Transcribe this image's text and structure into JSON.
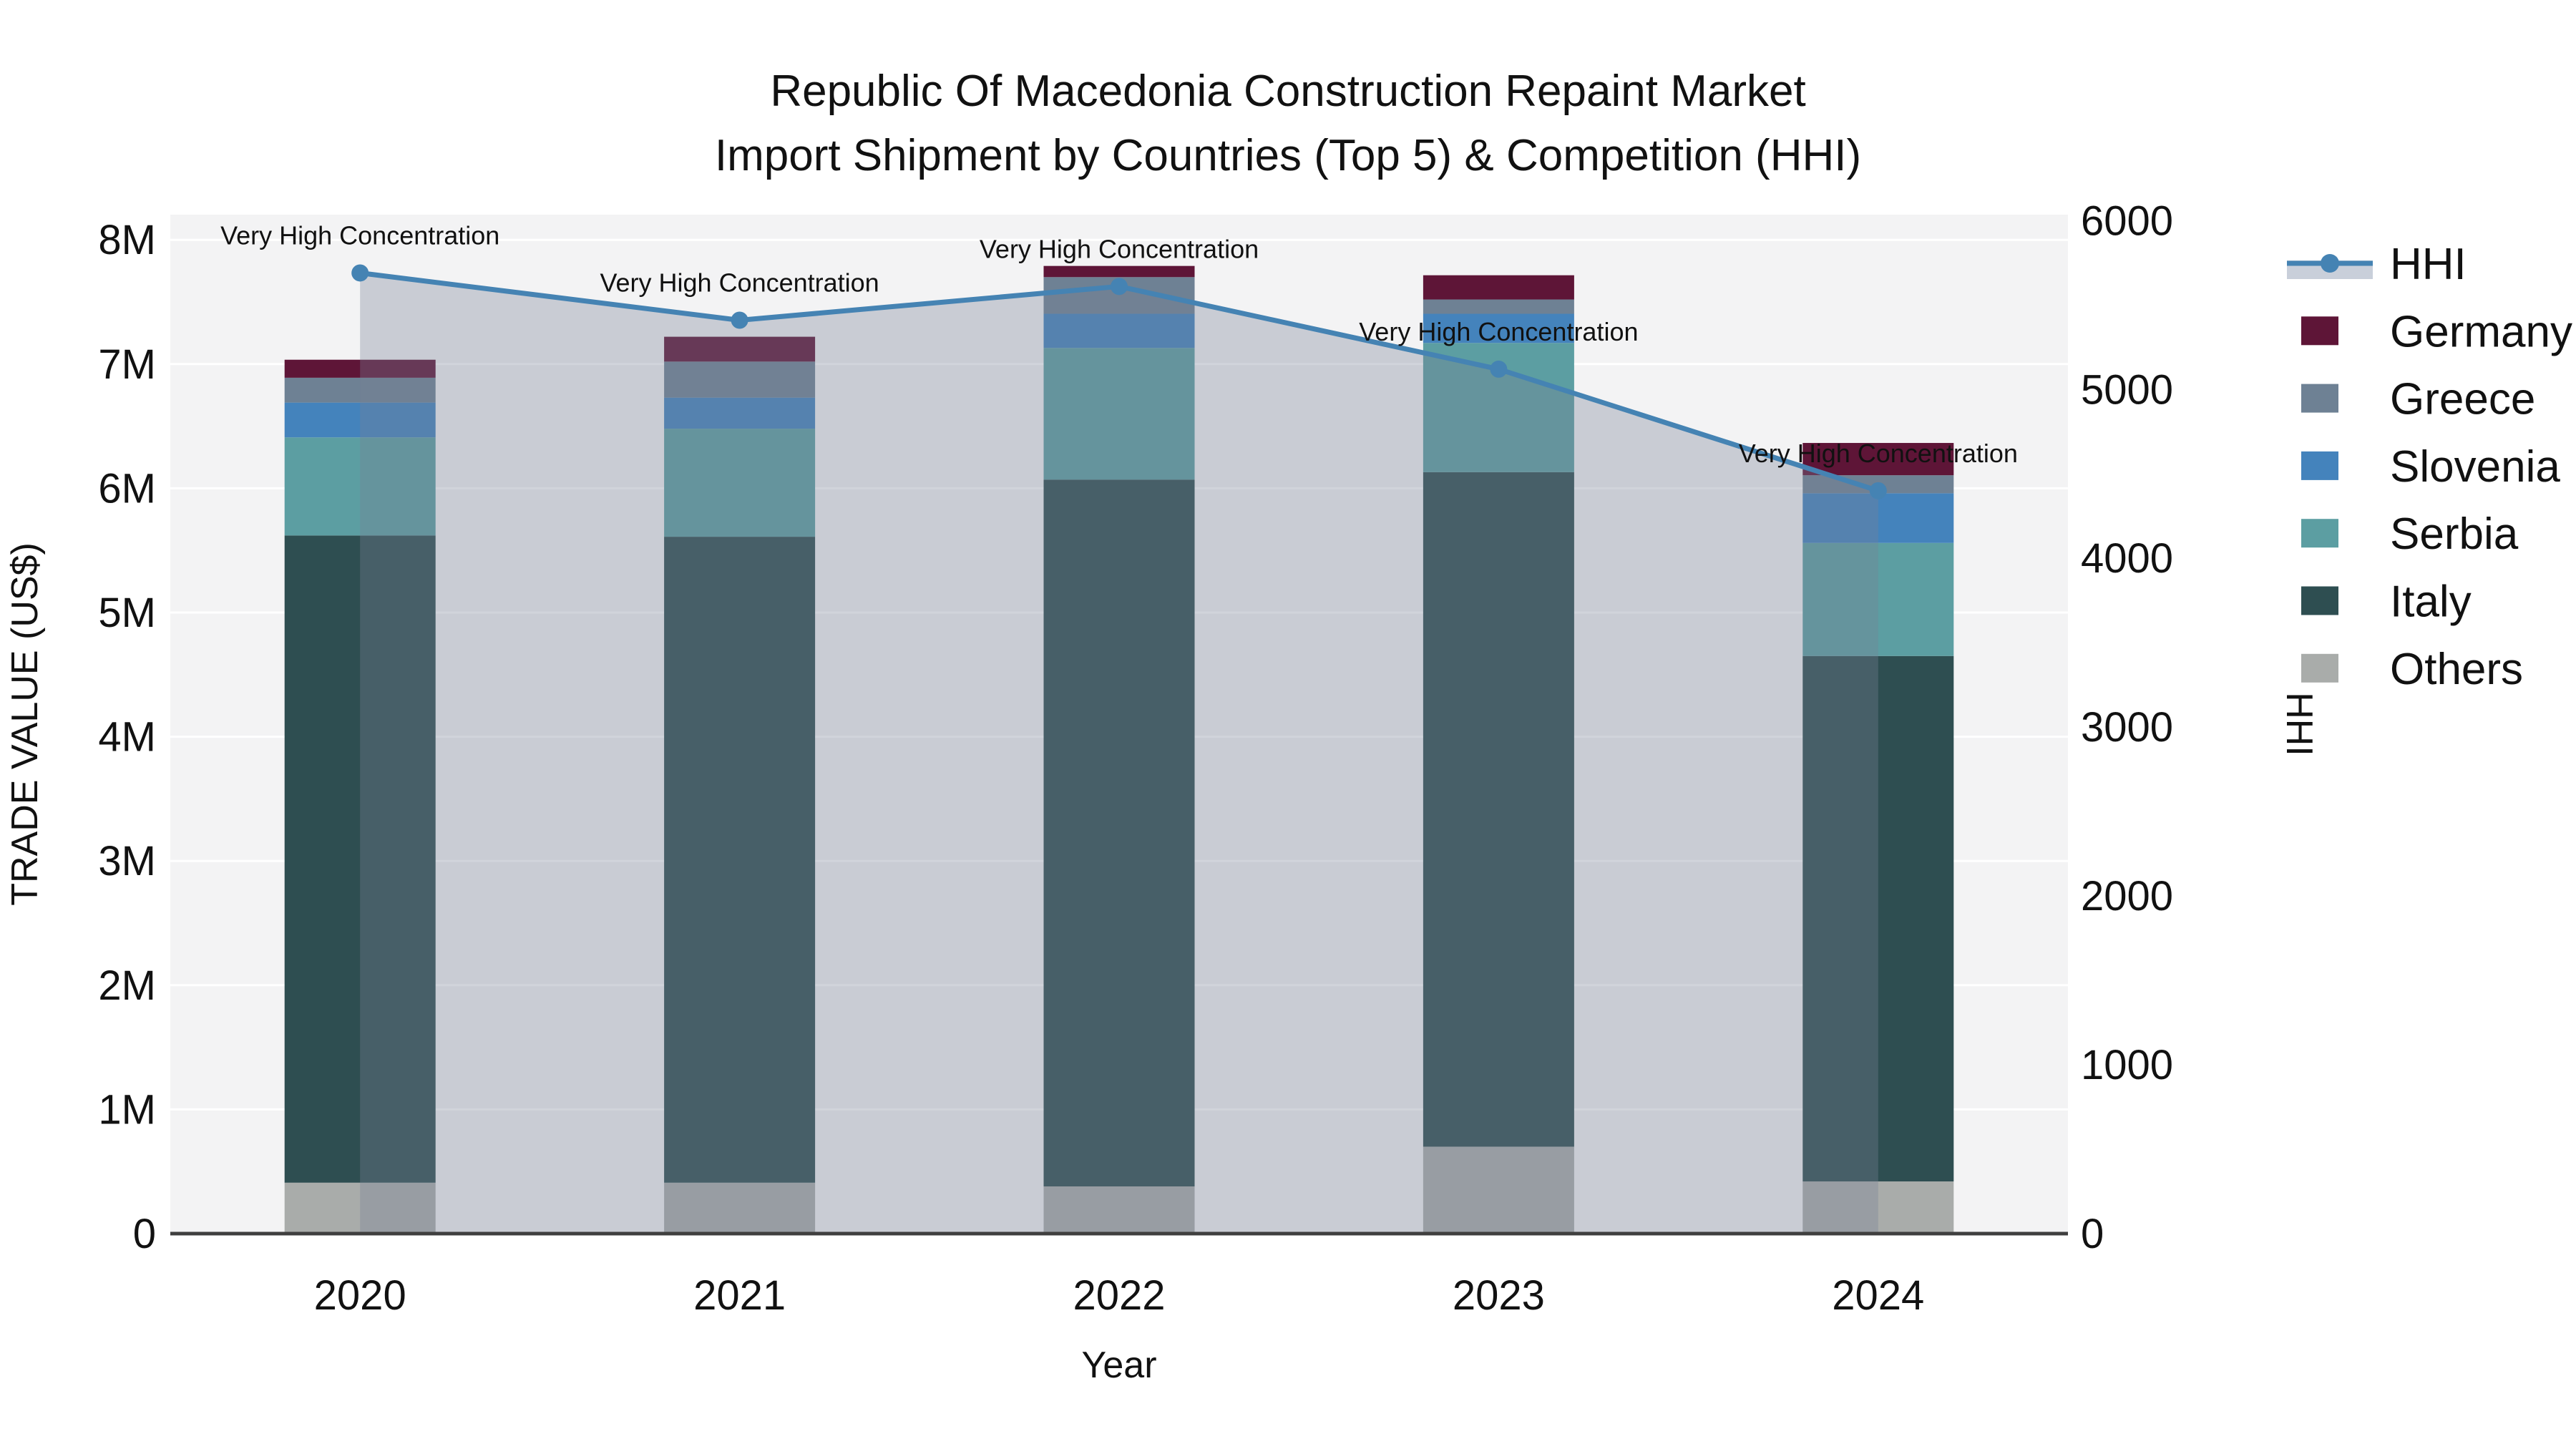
{
  "title": {
    "line1": "Republic Of Macedonia Construction Repaint Market",
    "line2": "Import Shipment by Countries (Top 5) & Competition (HHI)"
  },
  "axes": {
    "x": {
      "title": "Year",
      "categories": [
        "2020",
        "2021",
        "2022",
        "2023",
        "2024"
      ]
    },
    "y_left": {
      "title": "TRADE VALUE (US$)",
      "tick_labels": [
        "0",
        "1M",
        "2M",
        "3M",
        "4M",
        "5M",
        "6M",
        "7M",
        "8M"
      ],
      "tick_values": [
        0,
        1000000,
        2000000,
        3000000,
        4000000,
        5000000,
        6000000,
        7000000,
        8000000
      ]
    },
    "y_right": {
      "title": "HHI",
      "tick_labels": [
        "0",
        "1000",
        "2000",
        "3000",
        "4000",
        "5000",
        "6000"
      ],
      "tick_values": [
        0,
        1000,
        2000,
        3000,
        4000,
        5000,
        6000
      ]
    }
  },
  "annotation_text": "Very High Concentration",
  "legend": {
    "items": [
      {
        "label": "HHI",
        "type": "line",
        "color": "#4583b3"
      },
      {
        "label": "Germany",
        "type": "swatch",
        "color": "#5e1537"
      },
      {
        "label": "Greece",
        "type": "swatch",
        "color": "#6e8194"
      },
      {
        "label": "Slovenia",
        "type": "swatch",
        "color": "#4483bc"
      },
      {
        "label": "Serbia",
        "type": "swatch",
        "color": "#5c9ea2"
      },
      {
        "label": "Italy",
        "type": "swatch",
        "color": "#2e4e51"
      },
      {
        "label": "Others",
        "type": "swatch",
        "color": "#a9acaa"
      }
    ]
  },
  "colors": {
    "plot_bg": "#f3f3f4",
    "gridline": "#ffffff",
    "baseline": "#3f3f3f",
    "hhi_line": "#4583b3",
    "hhi_fill": "rgba(120,130,150,0.34)",
    "text": "#111111"
  },
  "chart_data": {
    "type": "bar",
    "subtype": "stacked bars with secondary-axis line",
    "categories": [
      "2020",
      "2021",
      "2022",
      "2023",
      "2024"
    ],
    "stack_order_bottom_to_top": [
      "Others",
      "Italy",
      "Serbia",
      "Slovenia",
      "Greece",
      "Germany"
    ],
    "series": [
      {
        "name": "Others",
        "axis": "left",
        "color": "#a9acaa",
        "values": [
          410000,
          410000,
          380000,
          700000,
          420000
        ]
      },
      {
        "name": "Italy",
        "axis": "left",
        "color": "#2e4e51",
        "values": [
          5210000,
          5200000,
          5690000,
          5430000,
          4230000
        ]
      },
      {
        "name": "Serbia",
        "axis": "left",
        "color": "#5c9ea2",
        "values": [
          790000,
          870000,
          1060000,
          1040000,
          910000
        ]
      },
      {
        "name": "Slovenia",
        "axis": "left",
        "color": "#4483bc",
        "values": [
          280000,
          250000,
          275000,
          235000,
          400000
        ]
      },
      {
        "name": "Greece",
        "axis": "left",
        "color": "#6e8194",
        "values": [
          200000,
          290000,
          295000,
          115000,
          145000
        ]
      },
      {
        "name": "Germany",
        "axis": "left",
        "color": "#5e1537",
        "values": [
          145000,
          200000,
          90000,
          195000,
          260000
        ]
      }
    ],
    "line_series": {
      "name": "HHI",
      "axis": "right",
      "color": "#4583b3",
      "values": [
        5690,
        5410,
        5610,
        5120,
        4400
      ],
      "area_fill": true
    },
    "bar_totals": [
      7035000,
      7220000,
      7790000,
      7715000,
      6365000
    ],
    "point_annotations": [
      "Very High Concentration",
      "Very High Concentration",
      "Very High Concentration",
      "Very High Concentration",
      "Very High Concentration"
    ],
    "xlabel": "Year",
    "ylabel_left": "TRADE VALUE (US$)",
    "ylabel_right": "HHI",
    "ylim_left": [
      0,
      8000000
    ],
    "ylim_right": [
      0,
      6000
    ],
    "grid": true,
    "legend_position": "right"
  }
}
